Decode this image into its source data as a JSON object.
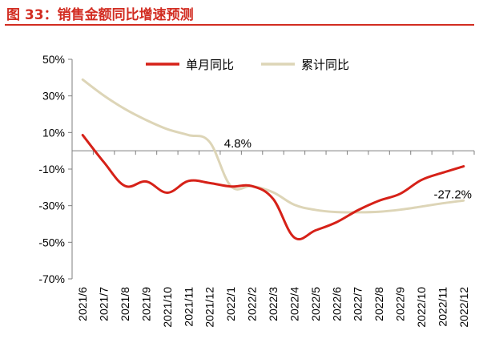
{
  "title": "图 33：销售金额同比增速预测",
  "colors": {
    "title": "#d22c21",
    "monthly": "#d62118",
    "cumulative": "#ddd5b7",
    "axis": "#7f7f7f"
  },
  "chart_data": {
    "type": "line",
    "title": "",
    "xlabel": "",
    "ylabel": "",
    "categories": [
      "2021/6",
      "2021/7",
      "2021/8",
      "2021/9",
      "2021/10",
      "2021/11",
      "2021/12",
      "2022/1",
      "2022/2",
      "2022/3",
      "2022/4",
      "2022/5",
      "2022/6",
      "2022/7",
      "2022/8",
      "2022/9",
      "2022/10",
      "2022/11",
      "2022/12"
    ],
    "yticks": [
      50,
      30,
      10,
      -10,
      -30,
      -50,
      -70
    ],
    "ytick_labels": [
      "50%",
      "30%",
      "10%",
      "-10%",
      "-30%",
      "-50%",
      "-70%"
    ],
    "ylim": [
      -70,
      50
    ],
    "legend_position": "top",
    "grid": false,
    "series": [
      {
        "name": "单月同比",
        "color": "#d62118",
        "values": [
          8.6,
          -6.2,
          -19.2,
          -16.8,
          -22.9,
          -16.5,
          -17.6,
          -19.5,
          -19.3,
          -26.3,
          -47.4,
          -43.5,
          -39.0,
          -32.5,
          -27.3,
          -23.5,
          -16.0,
          -12.0,
          -8.5
        ]
      },
      {
        "name": "累计同比",
        "color": "#ddd5b7",
        "values": [
          38.9,
          30.2,
          22.8,
          16.8,
          11.8,
          8.6,
          4.8,
          -19.3,
          -19.3,
          -22.7,
          -29.5,
          -32.3,
          -33.5,
          -33.6,
          -33.3,
          -32.2,
          -30.5,
          -28.7,
          -27.2
        ]
      }
    ],
    "annotations": [
      {
        "text": "4.8%",
        "series": 1,
        "index": 6
      },
      {
        "text": "-27.2%",
        "series": 1,
        "index": 18
      }
    ]
  }
}
